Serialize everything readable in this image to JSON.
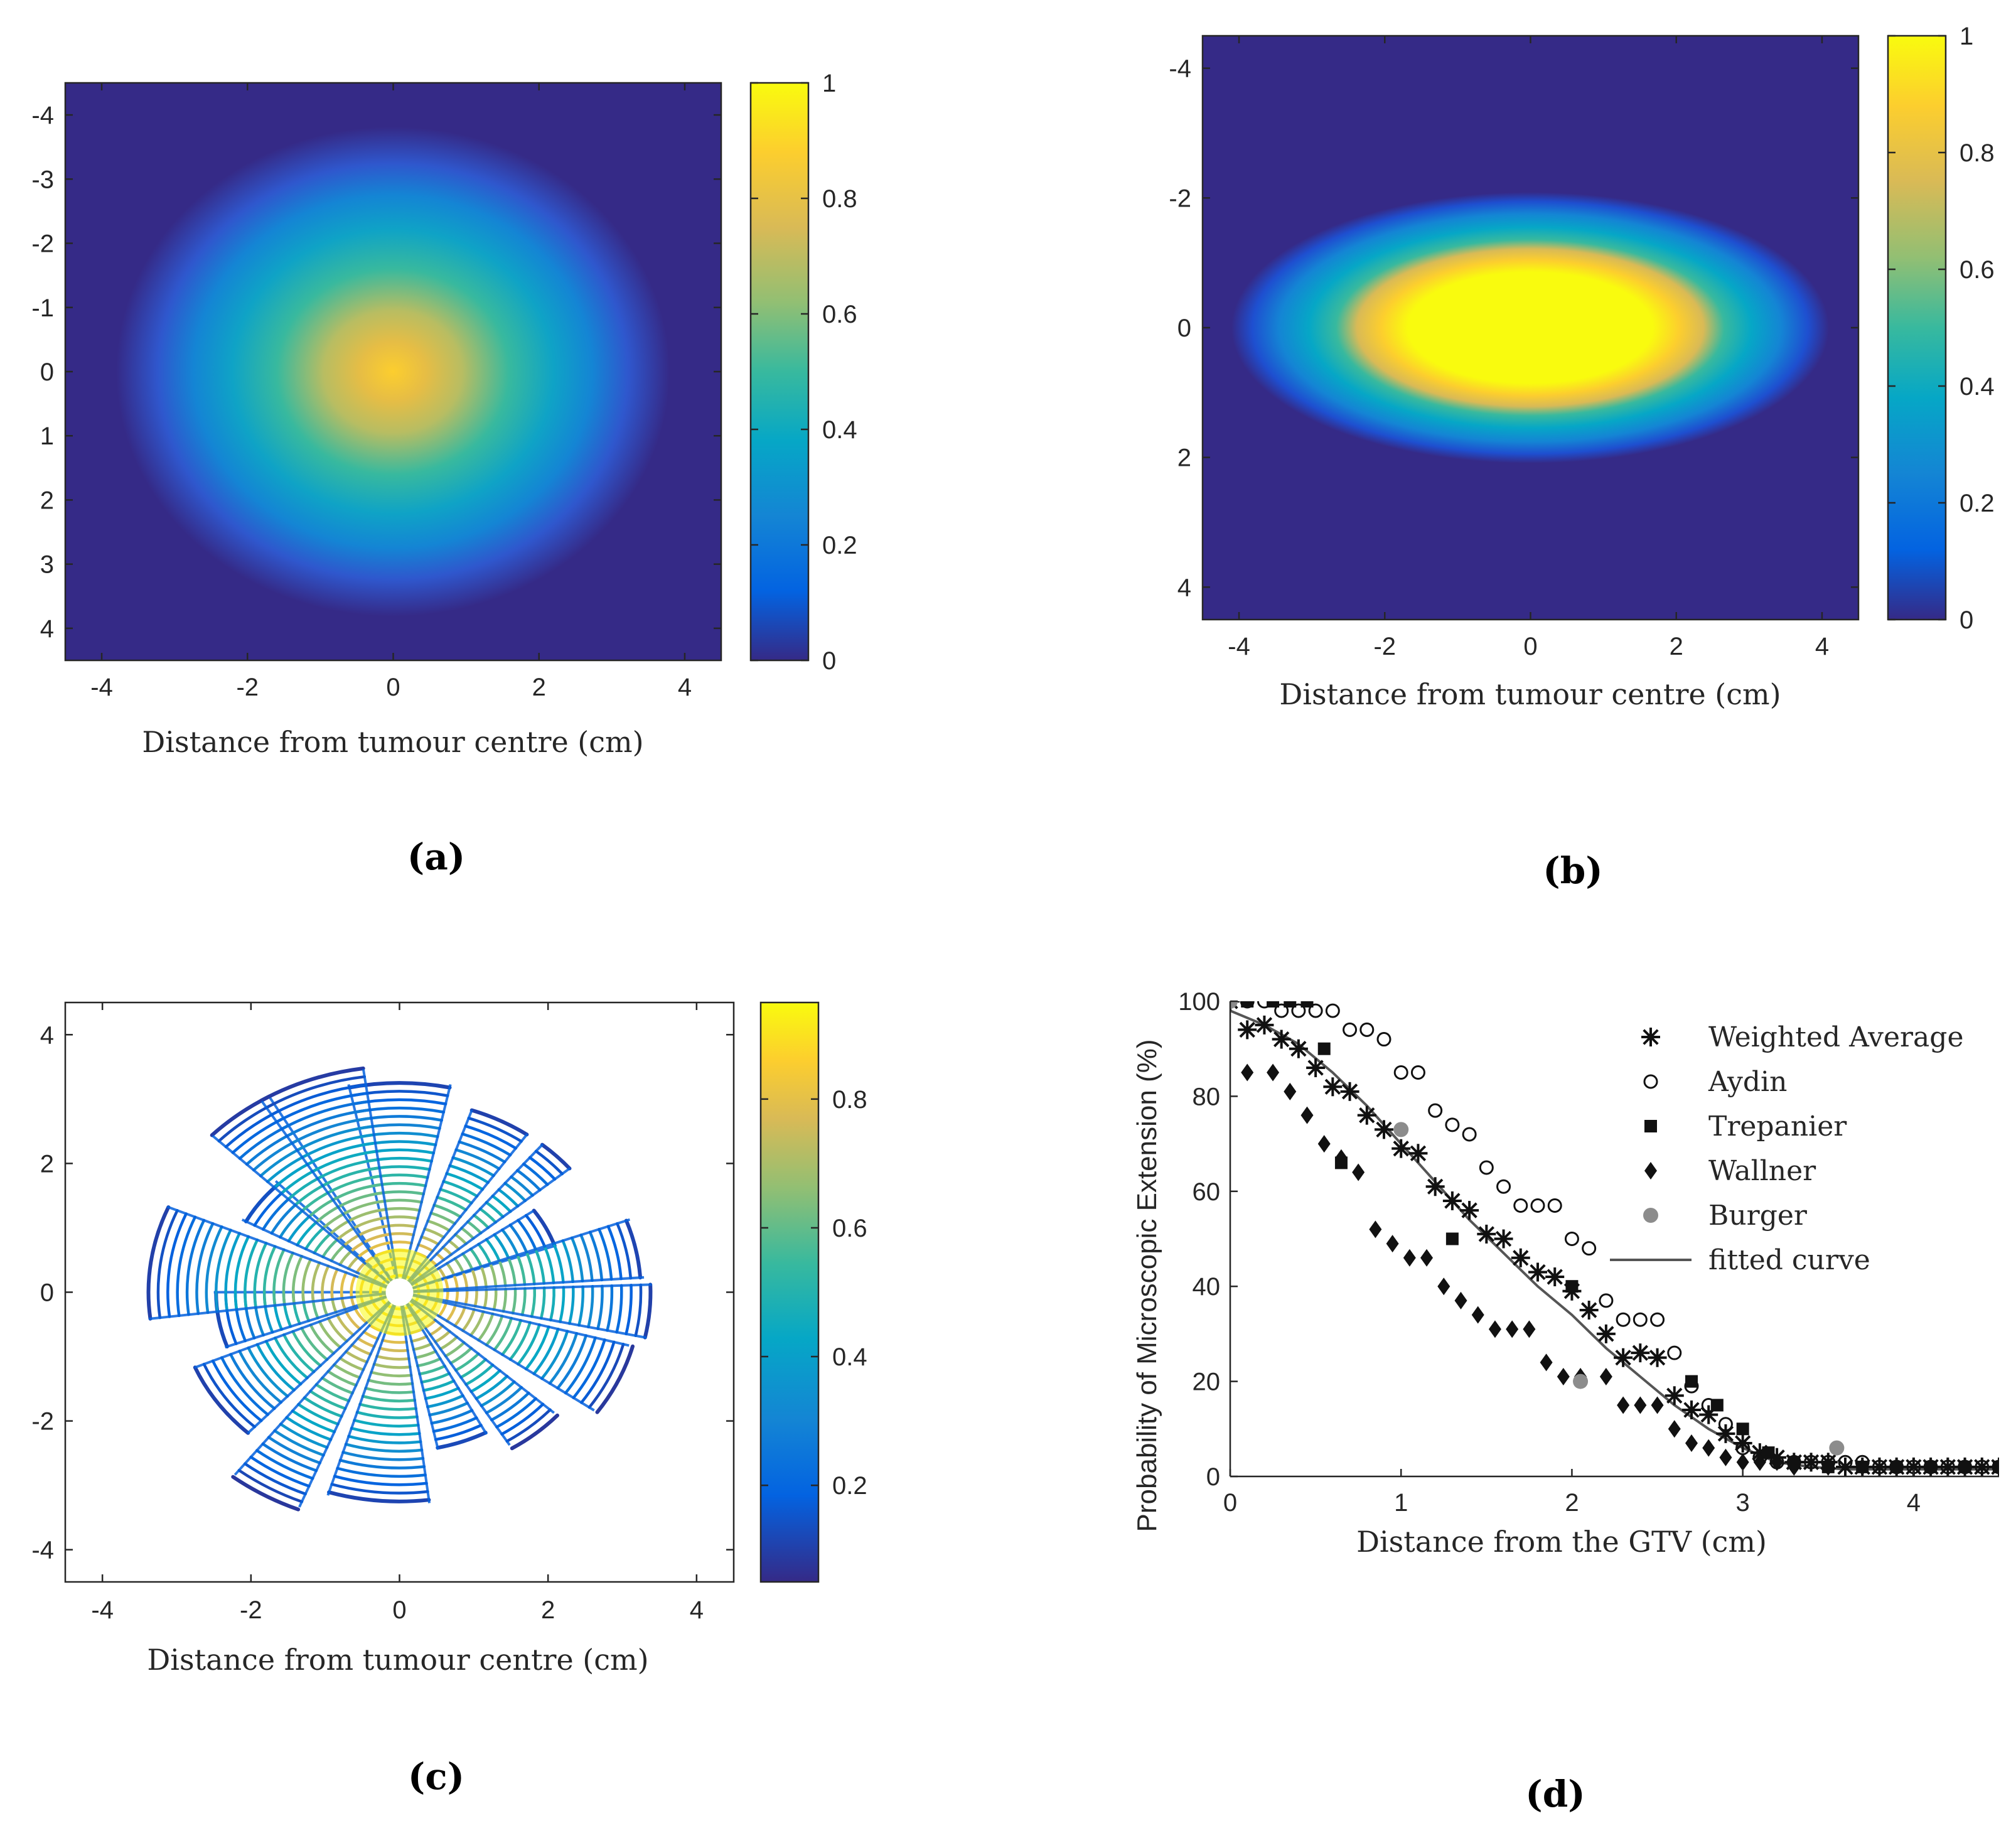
{
  "colors": {
    "parula": [
      "#352a87",
      "#0363e1",
      "#1485d4",
      "#06a7c6",
      "#38b99e",
      "#92bf73",
      "#d9ba56",
      "#fcce2e",
      "#f9fb0e"
    ],
    "background": "#ffffff",
    "axis": "#262626"
  },
  "panels": {
    "a": {
      "label": "(a)",
      "xlabel": "Distance from tumour centre (cm)",
      "xticks": [
        "-4",
        "-2",
        "0",
        "2",
        "4"
      ],
      "yticks": [
        "-4",
        "-3",
        "-2",
        "-1",
        "0",
        "1",
        "2",
        "3",
        "4"
      ],
      "colorbar_ticks": [
        "0",
        "0.2",
        "0.4",
        "0.6",
        "0.8",
        "1"
      ]
    },
    "b": {
      "label": "(b)",
      "xlabel": "Distance from tumour centre (cm)",
      "xticks": [
        "-4",
        "-2",
        "0",
        "2",
        "4"
      ],
      "yticks": [
        "-4",
        "-2",
        "0",
        "2",
        "4"
      ],
      "colorbar_ticks": [
        "0",
        "0.2",
        "0.4",
        "0.6",
        "0.8",
        "1"
      ]
    },
    "c": {
      "label": "(c)",
      "xlabel": "Distance from tumour centre (cm)",
      "xticks": [
        "-4",
        "-2",
        "0",
        "2",
        "4"
      ],
      "yticks": [
        "4",
        "2",
        "0",
        "-2",
        "-4"
      ],
      "colorbar_ticks": [
        "0.2",
        "0.4",
        "0.6",
        "0.8"
      ]
    },
    "d": {
      "label": "(d)",
      "xlabel": "Distance from the GTV (cm)",
      "ylabel": "Probability of Microscopic Extension (%)",
      "xticks": [
        "0",
        "1",
        "2",
        "3",
        "4"
      ],
      "yticks": [
        "100",
        "80",
        "60",
        "40",
        "20",
        "0"
      ],
      "legend": [
        "Weighted Average",
        "Aydin",
        "Trepanier",
        "Wallner",
        "Burger",
        "fitted curve"
      ]
    }
  },
  "chart_data": [
    {
      "id": "a",
      "type": "heatmap",
      "title": "",
      "xlabel": "Distance from tumour centre (cm)",
      "ylabel": "",
      "xlim": [
        -4.5,
        4.5
      ],
      "ylim": [
        -4.5,
        4.5
      ],
      "y_direction": "reversed",
      "colorbar": {
        "min": 0,
        "max": 1,
        "ticks": [
          0,
          0.2,
          0.4,
          0.6,
          0.8,
          1
        ]
      },
      "field": {
        "shape": "isotropic",
        "center": [
          0,
          0
        ],
        "peak_value": 0.8,
        "radius_to_zero_cm": 3.8
      }
    },
    {
      "id": "b",
      "type": "heatmap",
      "title": "",
      "xlabel": "Distance from tumour centre (cm)",
      "ylabel": "",
      "xlim": [
        -4.5,
        4.5
      ],
      "ylim": [
        -4.5,
        4.5
      ],
      "y_direction": "reversed",
      "colorbar": {
        "min": 0,
        "max": 1,
        "ticks": [
          0,
          0.2,
          0.4,
          0.6,
          0.8,
          1
        ]
      },
      "field": {
        "shape": "elliptical",
        "center": [
          0,
          0
        ],
        "plateau_value": 1,
        "plateau_semi_axes_cm": [
          1.7,
          0.85
        ],
        "zero_semi_axes_cm": [
          4.1,
          2.0
        ]
      }
    },
    {
      "id": "c",
      "type": "polar-wedge",
      "title": "",
      "xlabel": "Distance from tumour centre (cm)",
      "ylabel": "",
      "xlim": [
        -4.5,
        4.5
      ],
      "ylim": [
        -4.5,
        4.5
      ],
      "colorbar": {
        "min": 0.05,
        "max": 0.95,
        "ticks": [
          0.2,
          0.4,
          0.6,
          0.8
        ]
      },
      "ring_spacing_cm": 0.13,
      "wedges": [
        {
          "center_deg": 90,
          "half_width_deg": 12,
          "radius_cm": 3.3
        },
        {
          "center_deg": 63,
          "half_width_deg": 8,
          "radius_cm": 3.0
        },
        {
          "center_deg": 45,
          "half_width_deg": 5,
          "radius_cm": 3.0
        },
        {
          "center_deg": 27,
          "half_width_deg": 8,
          "radius_cm": 2.2
        },
        {
          "center_deg": 12,
          "half_width_deg": 8,
          "radius_cm": 3.3
        },
        {
          "center_deg": -5,
          "half_width_deg": 7,
          "radius_cm": 3.4
        },
        {
          "center_deg": -25,
          "half_width_deg": 10,
          "radius_cm": 3.2
        },
        {
          "center_deg": -50,
          "half_width_deg": 8,
          "radius_cm": 2.8
        },
        {
          "center_deg": -70,
          "half_width_deg": 8,
          "radius_cm": 2.5
        },
        {
          "center_deg": -95,
          "half_width_deg": 12,
          "radius_cm": 3.3
        },
        {
          "center_deg": -120,
          "half_width_deg": 8,
          "radius_cm": 3.6
        },
        {
          "center_deg": -145,
          "half_width_deg": 12,
          "radius_cm": 3.0
        },
        {
          "center_deg": -170,
          "half_width_deg": 10,
          "radius_cm": 2.5
        },
        {
          "center_deg": 172,
          "half_width_deg": 15,
          "radius_cm": 3.4
        },
        {
          "center_deg": 143,
          "half_width_deg": 9,
          "radius_cm": 2.4
        },
        {
          "center_deg": 128,
          "half_width_deg": 8,
          "radius_cm": 3.5
        },
        {
          "center_deg": 110,
          "half_width_deg": 12,
          "radius_cm": 3.5
        }
      ]
    },
    {
      "id": "d",
      "type": "scatter",
      "title": "",
      "xlabel": "Distance from the GTV (cm)",
      "ylabel": "Probability of Microscopic Extension (%)",
      "xlim": [
        0,
        4.5
      ],
      "ylim": [
        0,
        100
      ],
      "legend_position": "top-right",
      "series": [
        {
          "name": "Weighted Average",
          "marker": "asterisk",
          "x": [
            0.0,
            0.1,
            0.2,
            0.3,
            0.4,
            0.5,
            0.6,
            0.7,
            0.8,
            0.9,
            1.0,
            1.1,
            1.2,
            1.3,
            1.4,
            1.5,
            1.6,
            1.7,
            1.8,
            1.9,
            2.0,
            2.1,
            2.2,
            2.3,
            2.4,
            2.5,
            2.6,
            2.7,
            2.8,
            2.9,
            3.0,
            3.1,
            3.2,
            3.3,
            3.4,
            3.5,
            3.6,
            3.7,
            3.8,
            3.9,
            4.0,
            4.1,
            4.2,
            4.3,
            4.4,
            4.5
          ],
          "y": [
            100,
            94,
            95,
            92,
            90,
            86,
            82,
            81,
            76,
            73,
            69,
            68,
            61,
            58,
            56,
            51,
            50,
            46,
            43,
            42,
            39,
            35,
            30,
            25,
            26,
            25,
            17,
            14,
            13,
            9,
            7,
            5,
            4,
            3,
            3,
            3,
            2,
            2,
            2,
            2,
            2,
            2,
            2,
            2,
            2,
            2
          ]
        },
        {
          "name": "Aydin",
          "marker": "circle-open",
          "x": [
            0.0,
            0.1,
            0.2,
            0.3,
            0.4,
            0.5,
            0.6,
            0.7,
            0.8,
            0.9,
            1.0,
            1.1,
            1.2,
            1.3,
            1.4,
            1.5,
            1.6,
            1.7,
            1.8,
            1.9,
            2.0,
            2.1,
            2.2,
            2.3,
            2.4,
            2.5,
            2.6,
            2.7,
            2.8,
            2.9,
            3.0,
            3.1,
            3.2,
            3.3,
            3.4,
            3.5,
            3.6,
            3.7,
            3.8,
            3.9,
            4.0,
            4.1,
            4.2,
            4.3,
            4.4,
            4.5
          ],
          "y": [
            100,
            100,
            100,
            98,
            98,
            98,
            98,
            94,
            94,
            92,
            85,
            85,
            77,
            74,
            72,
            65,
            61,
            57,
            57,
            57,
            50,
            48,
            37,
            33,
            33,
            33,
            26,
            19,
            15,
            11,
            6,
            4,
            3,
            3,
            3,
            3,
            3,
            3,
            2,
            2,
            2,
            2,
            2,
            2,
            2,
            2
          ]
        },
        {
          "name": "Trepanier",
          "marker": "square-filled",
          "x": [
            0.0,
            0.1,
            0.25,
            0.35,
            0.45,
            0.55,
            0.65,
            1.3,
            2.0,
            2.7,
            2.85,
            3.0,
            3.15,
            3.3,
            3.5,
            3.7,
            3.9,
            4.1,
            4.3,
            4.5
          ],
          "y": [
            100,
            100,
            100,
            100,
            100,
            90,
            66,
            50,
            40,
            20,
            15,
            10,
            5,
            3,
            2,
            2,
            2,
            2,
            2,
            2
          ]
        },
        {
          "name": "Wallner",
          "marker": "diamond-filled",
          "x": [
            0.1,
            0.25,
            0.35,
            0.45,
            0.55,
            0.65,
            0.75,
            0.85,
            0.95,
            1.05,
            1.15,
            1.25,
            1.35,
            1.45,
            1.55,
            1.65,
            1.75,
            1.85,
            1.95,
            2.05,
            2.2,
            2.3,
            2.4,
            2.5,
            2.6,
            2.7,
            2.8,
            2.9,
            3.0,
            3.1,
            3.2,
            3.3,
            3.5,
            3.7,
            3.9,
            4.1,
            4.3,
            4.5
          ],
          "y": [
            85,
            85,
            81,
            76,
            70,
            67,
            64,
            52,
            49,
            46,
            46,
            40,
            37,
            34,
            31,
            31,
            31,
            24,
            21,
            21,
            21,
            15,
            15,
            15,
            10,
            7,
            6,
            4,
            3,
            3,
            3,
            2,
            2,
            2,
            2,
            2,
            2,
            2
          ]
        },
        {
          "name": "Burger",
          "marker": "circle-gray",
          "x": [
            0.0,
            1.0,
            2.05,
            3.55
          ],
          "y": [
            100,
            73,
            20,
            6
          ]
        },
        {
          "name": "fitted curve",
          "marker": "line",
          "x": [
            0.0,
            0.2,
            0.4,
            0.6,
            0.8,
            1.0,
            1.2,
            1.4,
            1.6,
            1.8,
            2.0,
            2.2,
            2.4,
            2.6,
            2.8,
            3.0,
            3.2,
            3.4,
            3.6,
            3.8,
            4.0,
            4.2,
            4.5
          ],
          "y": [
            98,
            95,
            91,
            85,
            78,
            70,
            62,
            54,
            47,
            40,
            34,
            27,
            21,
            15,
            10,
            6,
            3,
            2,
            1.5,
            1.5,
            1.5,
            1.5,
            1.5
          ]
        }
      ]
    }
  ]
}
